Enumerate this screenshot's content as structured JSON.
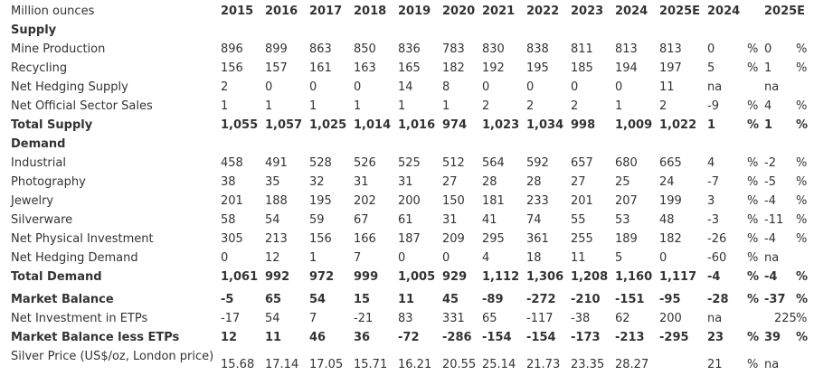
{
  "table": {
    "header": [
      "Million ounces",
      "2015",
      "2016",
      "2017",
      "2018",
      "2019",
      "2020",
      "2021",
      "2022",
      "2023",
      "2024",
      "2025E",
      "2024",
      null,
      "2025E",
      null
    ],
    "rows": [
      [
        "Supply"
      ],
      [
        "Mine Production",
        "896",
        "899",
        "863",
        "850",
        "836",
        "783",
        "830",
        "838",
        "811",
        "813",
        "813",
        "0",
        "%",
        "0",
        "%"
      ],
      [
        "Recycling",
        "156",
        "157",
        "161",
        "163",
        "165",
        "182",
        "192",
        "195",
        "185",
        "194",
        "197",
        "5",
        "%",
        "1",
        "%"
      ],
      [
        "Net Hedging Supply",
        "2",
        "0",
        "0",
        "0",
        "14",
        "8",
        "0",
        "0",
        "0",
        "0",
        "11",
        "na",
        null,
        "na",
        null
      ],
      [
        "Net Official Sector Sales",
        "1",
        "1",
        "1",
        "1",
        "1",
        "1",
        "2",
        "2",
        "2",
        "1",
        "2",
        "-9",
        "%",
        "4",
        "%"
      ],
      [
        "Total Supply",
        "1,055",
        "1,057",
        "1,025",
        "1,014",
        "1,016",
        "974",
        "1,023",
        "1,034",
        "998",
        "1,009",
        "1,022",
        "1",
        "%",
        "1",
        "%"
      ],
      [
        "Demand"
      ],
      [
        "Industrial",
        "458",
        "491",
        "528",
        "526",
        "525",
        "512",
        "564",
        "592",
        "657",
        "680",
        "665",
        "4",
        "%",
        "-2",
        "%"
      ],
      [
        "Photography",
        "38",
        "35",
        "32",
        "31",
        "31",
        "27",
        "28",
        "28",
        "27",
        "25",
        "24",
        "-7",
        "%",
        "-5",
        "%"
      ],
      [
        "Jewelry",
        "201",
        "188",
        "195",
        "202",
        "200",
        "150",
        "181",
        "233",
        "201",
        "207",
        "199",
        "3",
        "%",
        "-4",
        "%"
      ],
      [
        "Silverware",
        "58",
        "54",
        "59",
        "67",
        "61",
        "31",
        "41",
        "74",
        "55",
        "53",
        "48",
        "-3",
        "%",
        "-11",
        "%"
      ],
      [
        "Net Physical Investment",
        "305",
        "213",
        "156",
        "166",
        "187",
        "209",
        "295",
        "361",
        "255",
        "189",
        "182",
        "-26",
        "%",
        "-4",
        "%"
      ],
      [
        "Net Hedging Demand",
        "0",
        "12",
        "1",
        "7",
        "0",
        "0",
        "4",
        "18",
        "11",
        "5",
        "0",
        "-60",
        "%",
        "na",
        null
      ],
      [
        "Total Demand",
        "1,061",
        "992",
        "972",
        "999",
        "1,005",
        "929",
        "1,112",
        "1,306",
        "1,208",
        "1,160",
        "1,117",
        "-4",
        "%",
        "-4",
        "%"
      ],
      [
        "Market Balance",
        "-5",
        "65",
        "54",
        "15",
        "11",
        "45",
        "-89",
        "-272",
        "-210",
        "-151",
        "-95",
        "-28",
        "%",
        "-37",
        "%"
      ],
      [
        "Net Investment in ETPs",
        "-17",
        "54",
        "7",
        "-21",
        "83",
        "331",
        "65",
        "-117",
        "-38",
        "62",
        "200",
        "na",
        null,
        "225",
        "%"
      ],
      [
        "Market Balance less ETPs",
        "12",
        "11",
        "46",
        "36",
        "-72",
        "-286",
        "-154",
        "-154",
        "-173",
        "-213",
        "-295",
        "23",
        "%",
        "39",
        "%"
      ],
      [
        "Silver Price (US$/oz, London price)",
        "15.68",
        "17.14",
        "17.05",
        "15.71",
        "16.21",
        "20.55",
        "25.14",
        "21.73",
        "23.35",
        "28.27",
        null,
        "21",
        "%",
        "na",
        null
      ]
    ]
  }
}
